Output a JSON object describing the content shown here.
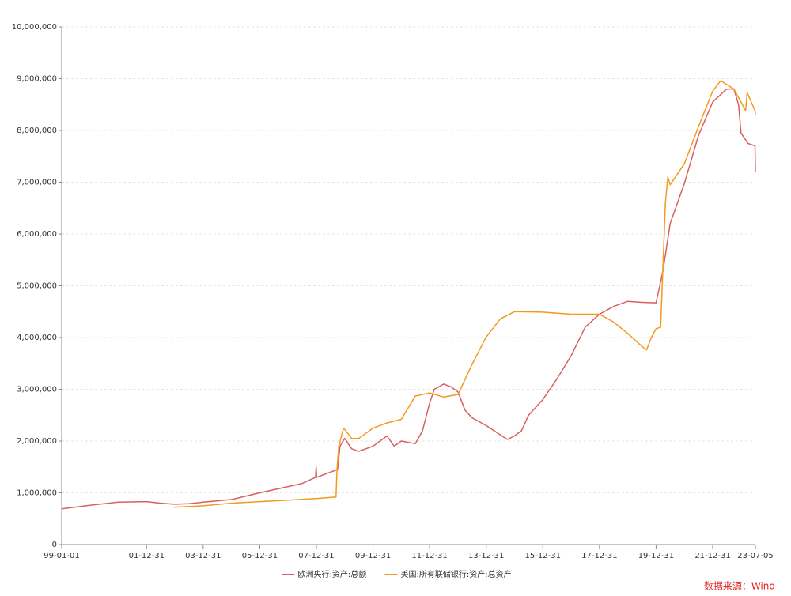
{
  "chart_data": {
    "type": "line",
    "source": "数据来源：Wind",
    "legend": "bottom",
    "grid": true,
    "xlim": [
      "99-01-01",
      "23-07-05"
    ],
    "xticks": [
      "99-01-01",
      "01-12-31",
      "03-12-31",
      "05-12-31",
      "07-12-31",
      "09-12-31",
      "11-12-31",
      "13-12-31",
      "15-12-31",
      "17-12-31",
      "19-12-31",
      "21-12-31",
      "23-07-05"
    ],
    "ylim": [
      0,
      10000000
    ],
    "yticks": [
      0,
      {
        "value": 1000000,
        "label": "1,000,000"
      },
      {
        "value": 2000000,
        "label": "2,000,000"
      },
      {
        "value": 3000000,
        "label": "3,000,000"
      },
      {
        "value": 4000000,
        "label": "4,000,000"
      },
      {
        "value": 5000000,
        "label": "5,000,000"
      },
      {
        "value": 6000000,
        "label": "6,000,000"
      },
      {
        "value": 7000000,
        "label": "7,000,000"
      },
      {
        "value": 8000000,
        "label": "8,000,000"
      },
      {
        "value": 9000000,
        "label": "9,000,000"
      },
      {
        "value": 10000000,
        "label": "10,000,000"
      }
    ],
    "series": [
      {
        "name": "欧洲央行:资产:总额",
        "color": "#d95f5f",
        "x": [
          "99-01-01",
          "00-01-01",
          "01-01-01",
          "02-01-01",
          "02-06-30",
          "03-01-01",
          "03-06-30",
          "04-01-01",
          "04-12-31",
          "05-12-31",
          "06-12-31",
          "07-06-30",
          "07-12-20",
          "07-12-28",
          "08-01-04",
          "08-06-30",
          "08-09-30",
          "08-10-31",
          "08-12-31",
          "09-03-31",
          "09-06-30",
          "09-12-31",
          "10-06-30",
          "10-09-30",
          "10-12-31",
          "11-06-30",
          "11-09-30",
          "11-12-31",
          "12-03-01",
          "12-06-30",
          "12-09-30",
          "12-12-31",
          "13-03-31",
          "13-06-30",
          "13-12-31",
          "14-06-30",
          "14-09-30",
          "14-12-31",
          "15-03-31",
          "15-06-30",
          "15-12-31",
          "16-06-30",
          "16-12-31",
          "17-06-30",
          "17-12-31",
          "18-06-30",
          "18-12-31",
          "19-06-30",
          "19-12-31",
          "20-03-31",
          "20-06-30",
          "20-12-31",
          "21-06-30",
          "21-12-31",
          "22-06-30",
          "22-09-30",
          "22-11-30",
          "22-12-31",
          "23-03-31",
          "23-06-30",
          "23-07-05"
        ],
        "values": [
          690000,
          760000,
          820000,
          830000,
          800000,
          780000,
          790000,
          820000,
          870000,
          1000000,
          1120000,
          1180000,
          1300000,
          1500000,
          1300000,
          1400000,
          1450000,
          1900000,
          2050000,
          1850000,
          1800000,
          1900000,
          2100000,
          1900000,
          2000000,
          1950000,
          2200000,
          2730000,
          3000000,
          3100000,
          3050000,
          2950000,
          2600000,
          2450000,
          2300000,
          2120000,
          2030000,
          2100000,
          2200000,
          2500000,
          2800000,
          3200000,
          3650000,
          4200000,
          4450000,
          4600000,
          4700000,
          4680000,
          4670000,
          5300000,
          6200000,
          6980000,
          7900000,
          8550000,
          8800000,
          8800000,
          8500000,
          7950000,
          7750000,
          7700000,
          7200000
        ]
      },
      {
        "name": "美国:所有联储银行:资产:总资产",
        "color": "#f39a1e",
        "x": [
          "02-12-18",
          "03-12-31",
          "04-12-31",
          "05-12-31",
          "06-12-31",
          "07-12-31",
          "08-09-10",
          "08-09-24",
          "08-10-15",
          "08-12-17",
          "09-03-31",
          "09-06-30",
          "09-12-31",
          "10-06-30",
          "10-12-31",
          "11-06-30",
          "11-12-31",
          "12-06-30",
          "12-12-31",
          "13-06-30",
          "13-12-31",
          "14-06-30",
          "14-12-31",
          "15-12-31",
          "16-12-31",
          "17-12-31",
          "18-06-30",
          "18-12-31",
          "19-06-30",
          "19-08-31",
          "19-10-31",
          "19-12-31",
          "20-02-28",
          "20-04-30",
          "20-05-31",
          "20-06-30",
          "20-12-31",
          "21-06-30",
          "21-12-31",
          "22-04-13",
          "22-09-30",
          "22-12-31",
          "23-02-28",
          "23-03-22",
          "23-06-30",
          "23-07-05"
        ],
        "values": [
          720000,
          750000,
          800000,
          830000,
          860000,
          890000,
          920000,
          1500000,
          1900000,
          2250000,
          2050000,
          2050000,
          2250000,
          2350000,
          2420000,
          2870000,
          2930000,
          2850000,
          2900000,
          3480000,
          4010000,
          4360000,
          4500000,
          4490000,
          4450000,
          4450000,
          4300000,
          4080000,
          3830000,
          3760000,
          4000000,
          4170000,
          4200000,
          6600000,
          7100000,
          6950000,
          7360000,
          8070000,
          8760000,
          8960000,
          8800000,
          8550000,
          8380000,
          8730000,
          8380000,
          8300000
        ]
      }
    ]
  }
}
